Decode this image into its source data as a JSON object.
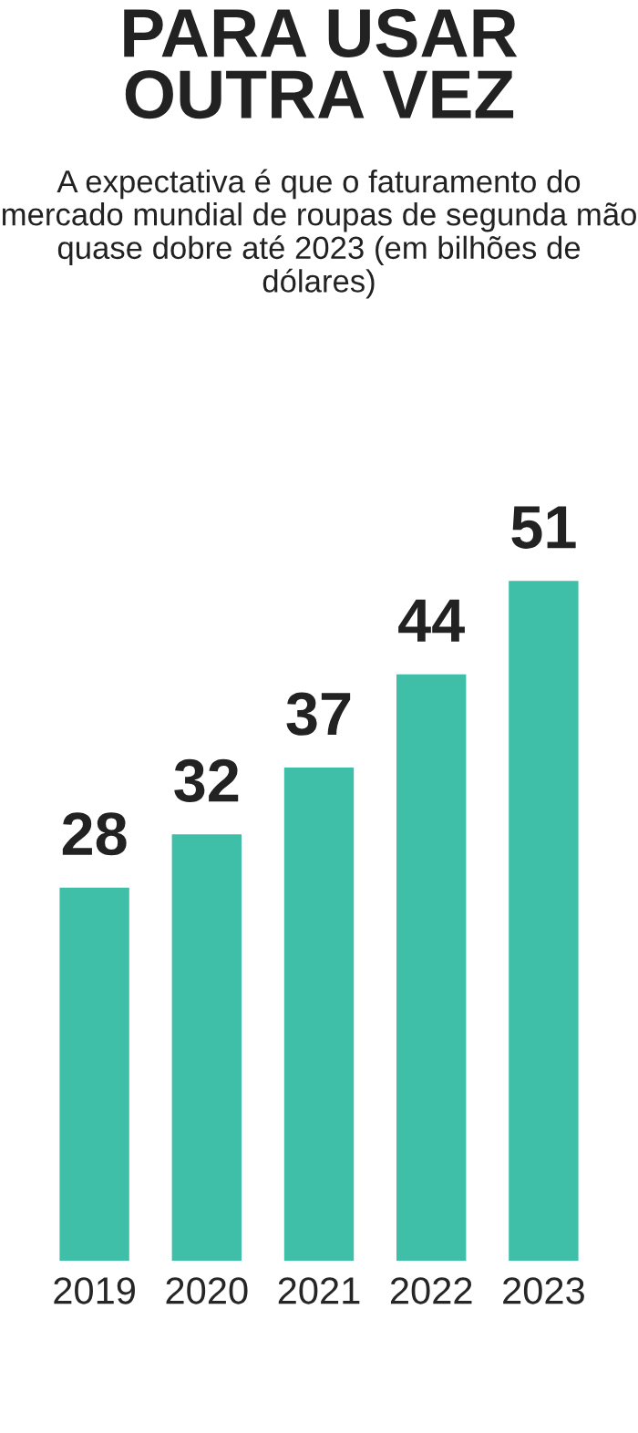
{
  "chart_data": {
    "type": "bar",
    "title": "PARA USAR\nOUTRA VEZ",
    "subtitle": "A expectativa é que o faturamento do mercado mundial de roupas de segunda mão quase dobre até 2023 (em bilhões de dólares)",
    "categories": [
      "2019",
      "2020",
      "2021",
      "2022",
      "2023"
    ],
    "values": [
      28,
      32,
      37,
      44,
      51
    ],
    "color": "#3fbfa8",
    "data_labels": true
  }
}
